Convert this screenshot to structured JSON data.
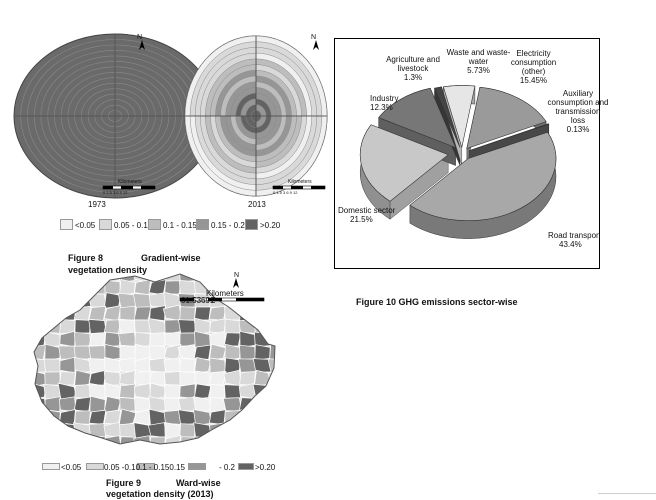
{
  "figure8": {
    "maps": [
      {
        "year": "1973"
      },
      {
        "year": "2013"
      }
    ],
    "north_label": "N",
    "scale_label": "Kilometers",
    "scale_ticks": "0 1.5 3    6    9   12",
    "legend": [
      {
        "label": "<0.05",
        "color": "#f0f0f0"
      },
      {
        "label": "0.05 - 0.1",
        "color": "#d9d9d9"
      },
      {
        "label": "0.1 - 0.15",
        "color": "#bdbdbd"
      },
      {
        "label": "0.15 - 0.2",
        "color": "#969696"
      },
      {
        "label": ">0.20",
        "color": "#636363"
      }
    ],
    "caption_number": "Figure 8",
    "caption_title_1": "Gradient-wise",
    "caption_title_2": "vegetation density"
  },
  "figure9": {
    "north_label": "N",
    "scale_label": "Kilometers",
    "scale_number": "01.53691",
    "scale_trailing": "2",
    "legend": [
      {
        "label": "<0.05",
        "color": "#f0f0f0"
      },
      {
        "label": "0.05 -0.1",
        "color": "#d9d9d9"
      },
      {
        "label": "0.1 - 0.15",
        "color": "#bdbdbd"
      },
      {
        "label": "0.15 - 0.2",
        "color": "#969696"
      },
      {
        "label": ">0.20",
        "color": "#636363"
      }
    ],
    "legend_text_a": "<0.05",
    "legend_text_b": "0.05 -0.10.1 - 0.150.15",
    "legend_text_c": "- 0.2",
    "legend_text_d": ">0.20",
    "caption_number": "Figure 9",
    "caption_title_1": "Ward-wise",
    "caption_title_2": "vegetation density (2013)"
  },
  "figure10": {
    "caption": "Figure 10 GHG emissions sector-wise",
    "chart_data": {
      "type": "pie",
      "slices": [
        {
          "name": "Road transpon",
          "value": 43.4,
          "label_value": "43.4%",
          "color": "#a8a8a8"
        },
        {
          "name": "Domestic sector",
          "value": 21.5,
          "label_value": "21.5%",
          "color": "#c8c8c8"
        },
        {
          "name": "Industry",
          "value": 12.3,
          "label_value": "12.3%",
          "color": "#777777"
        },
        {
          "name": "Agriculture and livestock",
          "value": 1.3,
          "label_value": "1.3%",
          "color": "#444444"
        },
        {
          "name": "Waste and waste-water",
          "value": 5.73,
          "label_value": "5.73%",
          "color": "#e6e6e6"
        },
        {
          "name": "Electricity consumption (other)",
          "value": 15.45,
          "label_value": "15.45%",
          "color": "#9a9a9a"
        },
        {
          "name": "Auxiliary consumption and transmission loss",
          "value": 0.13,
          "label_value": "0.13%",
          "color": "#5a5a5a"
        }
      ]
    },
    "labels": {
      "agri_1": "Agriculture and",
      "agri_2": "livestock",
      "agri_v": "1.3%",
      "waste_1": "Waste and waste-",
      "waste_2": "water",
      "waste_v": "5.73%",
      "elec_1": "Electricity",
      "elec_2": "consumption",
      "elec_3": "(other)",
      "elec_v": "15.45%",
      "aux_1": "Auxiliary",
      "aux_2": "consumption and",
      "aux_3": "transmission",
      "aux_4": "loss",
      "aux_v": "0.13%",
      "ind_1": "Industry",
      "ind_v": "12.3%",
      "dom_1": "Domestic sector",
      "dom_v": "21.5%",
      "road_1": "Road transpon",
      "road_v": "43.4%"
    }
  }
}
